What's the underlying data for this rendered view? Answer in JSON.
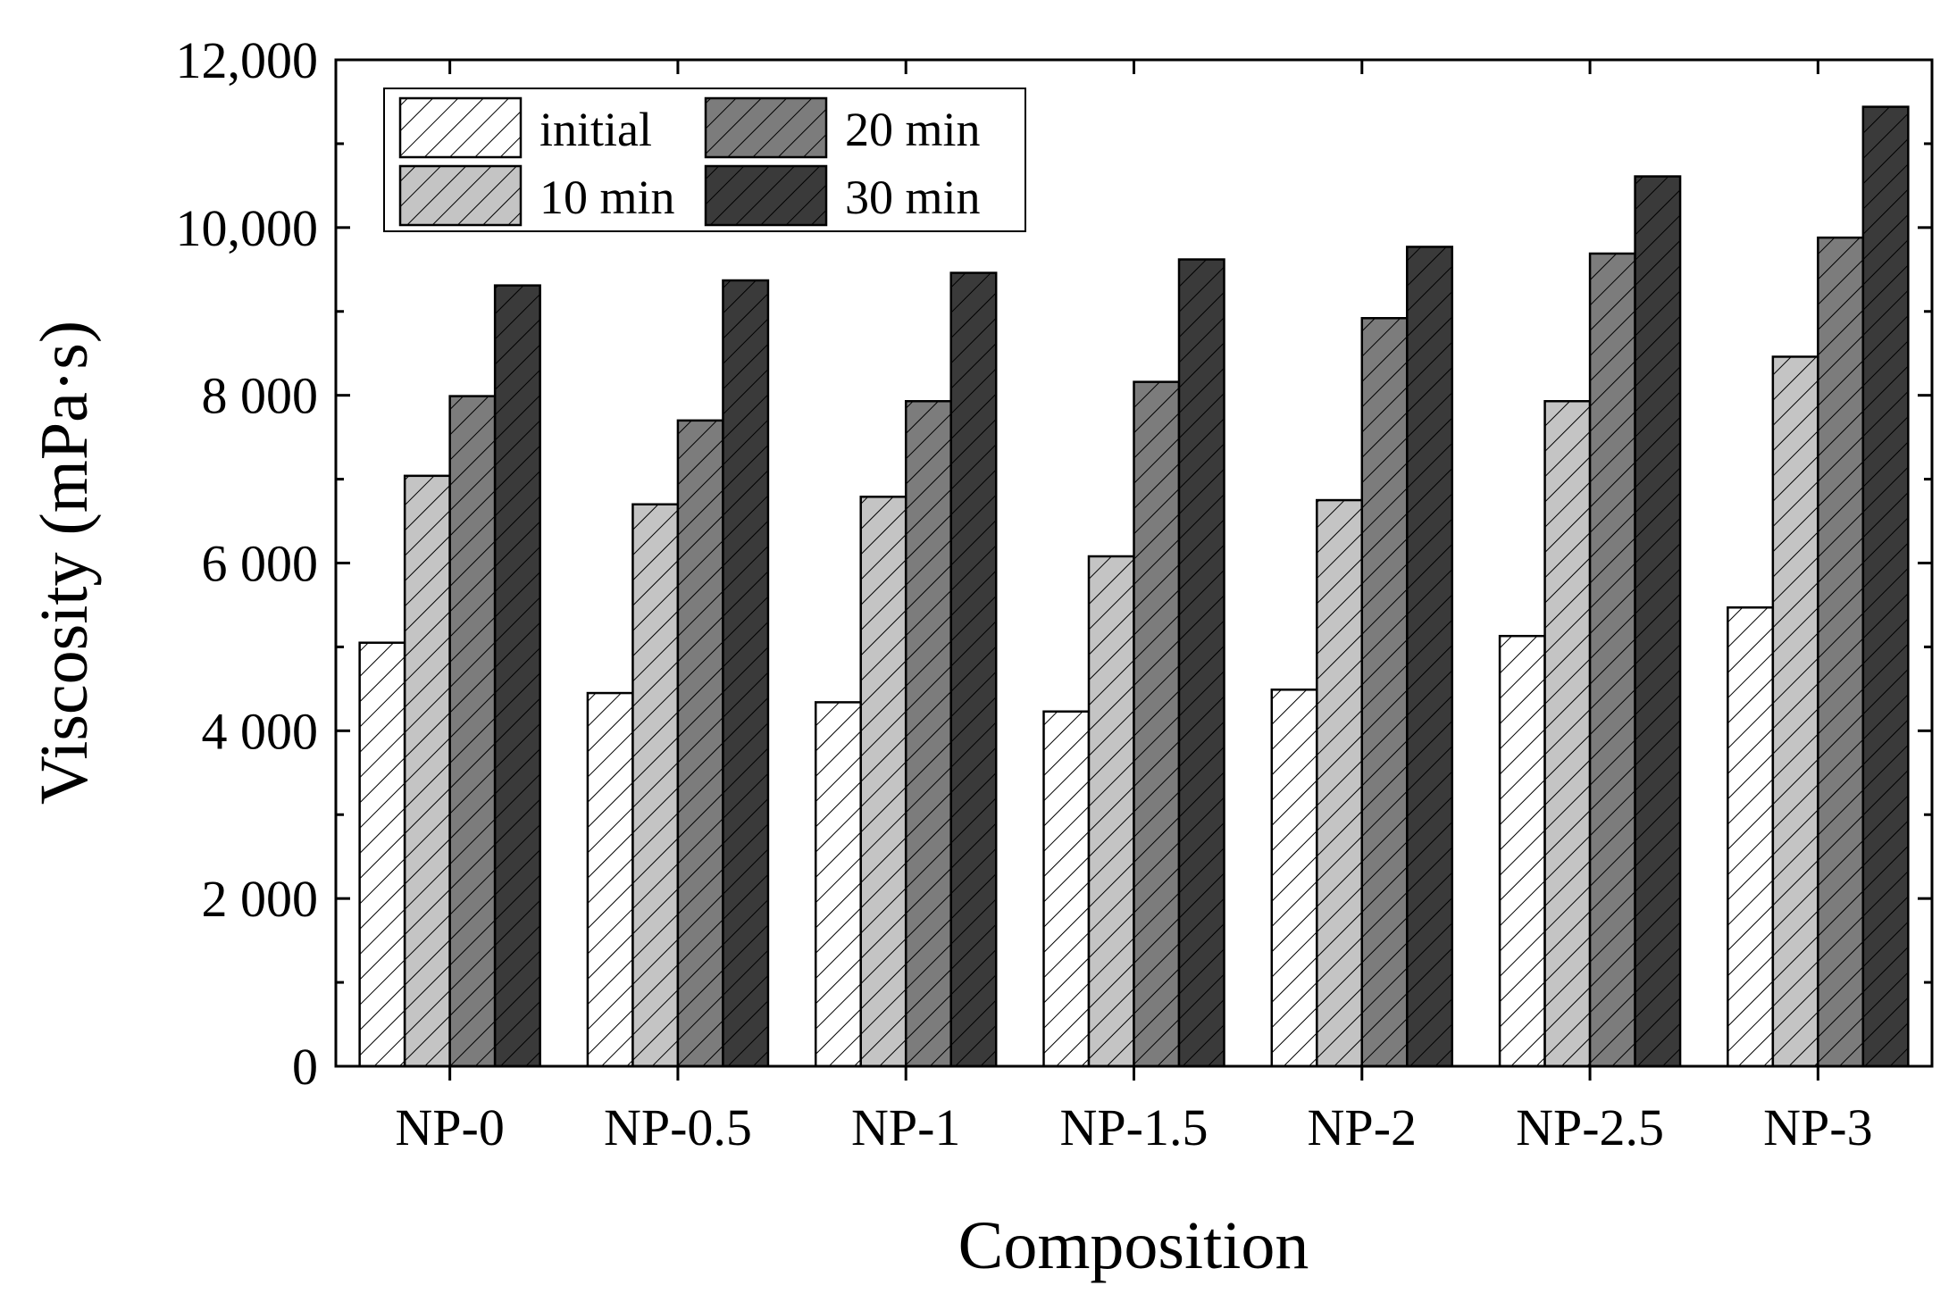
{
  "chart_data": {
    "type": "bar",
    "title": "",
    "xlabel": "Composition",
    "ylabel": "Viscosity (mPa·s)",
    "ylim": [
      0,
      12000
    ],
    "yticks": [
      0,
      2000,
      4000,
      6000,
      8000,
      10000,
      12000
    ],
    "ytick_labels": [
      "0",
      "2 000",
      "4 000",
      "6 000",
      "8 000",
      "10,000",
      "12,000"
    ],
    "categories": [
      "NP-0",
      "NP-0.5",
      "NP-1",
      "NP-1.5",
      "NP-2",
      "NP-2.5",
      "NP-3"
    ],
    "series": [
      {
        "name": "initial",
        "color": "#ffffff",
        "values": [
          5050,
          4450,
          4340,
          4230,
          4490,
          5130,
          5470
        ]
      },
      {
        "name": "10 min",
        "color": "#c4c4c4",
        "values": [
          7040,
          6700,
          6790,
          6080,
          6750,
          7930,
          8460
        ]
      },
      {
        "name": "20 min",
        "color": "#7c7c7c",
        "values": [
          7990,
          7700,
          7930,
          8160,
          8920,
          9690,
          9880
        ]
      },
      {
        "name": "30 min",
        "color": "#3a3a3a",
        "values": [
          9310,
          9370,
          9460,
          9620,
          9770,
          10610,
          11440
        ]
      }
    ],
    "pattern": "diagonal-hatch",
    "grid": false,
    "legend": {
      "position": "top-left",
      "columns": 2
    }
  }
}
